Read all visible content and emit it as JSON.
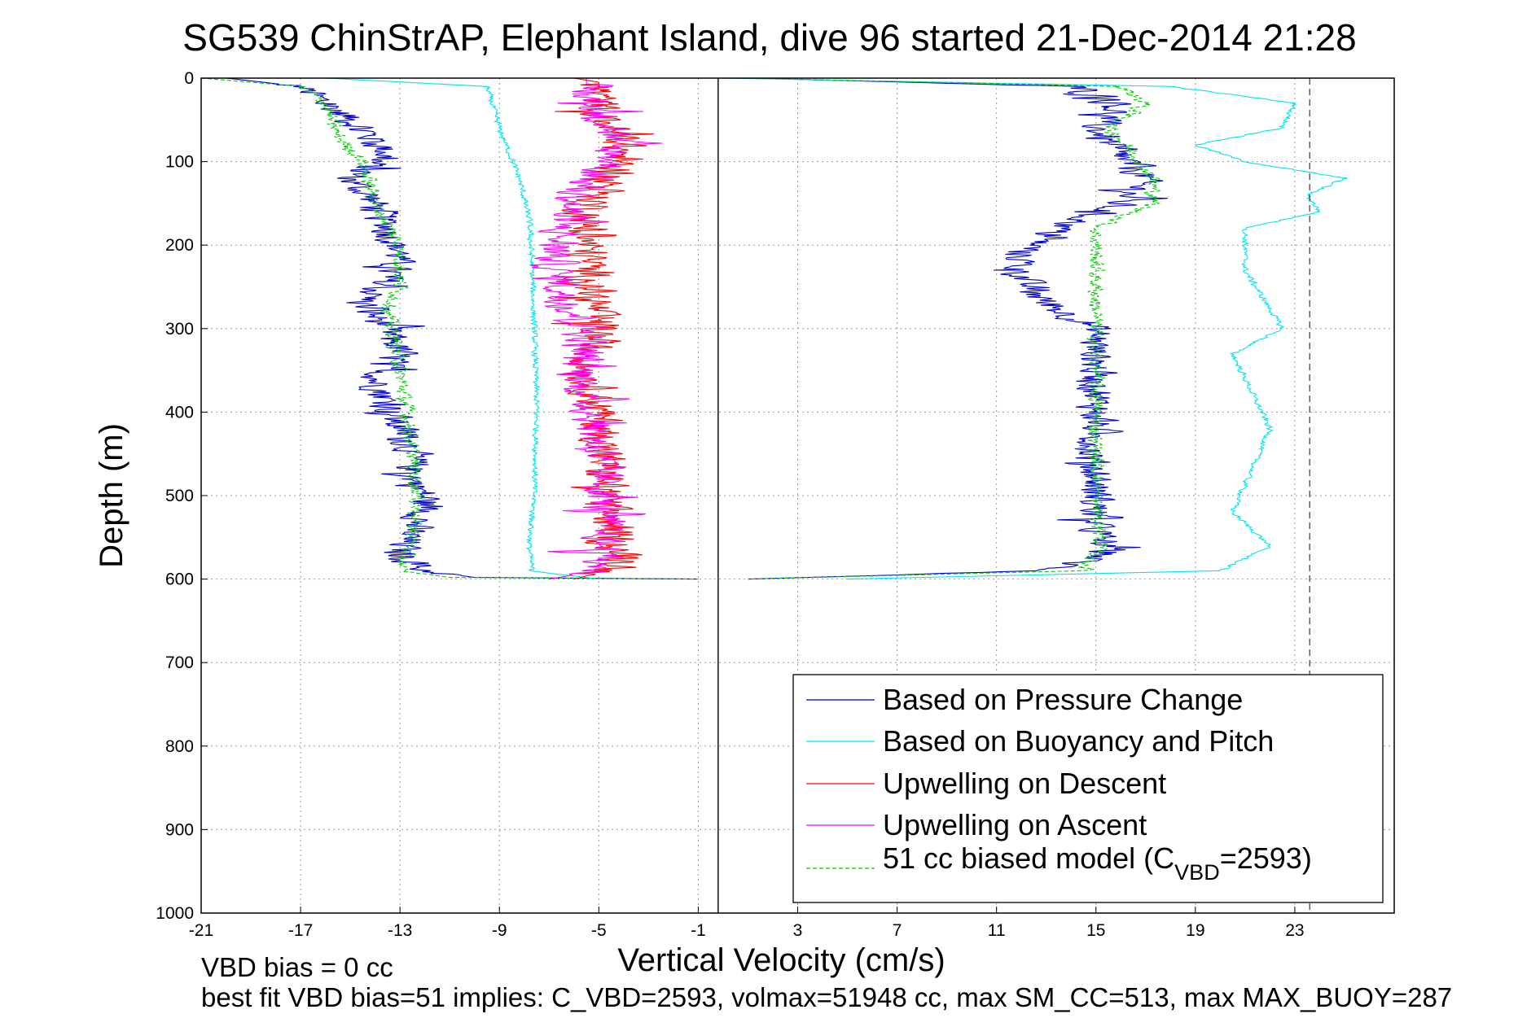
{
  "chart_data": {
    "type": "line",
    "title": "SG539 ChinStrAP, Elephant Island, dive 96 started 21-Dec-2014 21:28",
    "xlabel": "Vertical Velocity (cm/s)",
    "ylabel": "Depth (m)",
    "xlim": [
      -21,
      27
    ],
    "ylim": [
      1000,
      0
    ],
    "x_ticks": [
      "-21",
      "-17",
      "-13",
      "-9",
      "-5",
      "-1",
      "3",
      "7",
      "11",
      "15",
      "19",
      "23"
    ],
    "y_ticks": [
      "0",
      "100",
      "200",
      "300",
      "400",
      "500",
      "600",
      "700",
      "800",
      "900",
      "1000"
    ],
    "grid": true,
    "legend_position": "lower-right",
    "series": [
      {
        "name": "Based on Pressure Change",
        "color": "#0000cc",
        "style": "solid",
        "noise": 0.9,
        "segments": [
          {
            "depth": [
              0,
              10,
              30,
              60,
              90,
              120,
              150,
              180,
              210,
              240,
              270,
              300,
              330,
              360,
              390,
              420,
              450,
              480,
              510,
              540,
              570,
              590,
              598,
              600
            ],
            "x": [
              -20,
              -17,
              -16,
              -14.5,
              -13.5,
              -15,
              -14,
              -13.5,
              -13,
              -13.5,
              -14.5,
              -13.5,
              -13,
              -14,
              -13.5,
              -13,
              -12.5,
              -12.5,
              -11.8,
              -12.5,
              -13,
              -12,
              -10,
              -1
            ]
          },
          {
            "depth": [
              0,
              10,
              30,
              60,
              90,
              120,
              150,
              180,
              210,
              240,
              270,
              300,
              330,
              360,
              390,
              420,
              450,
              480,
              510,
              540,
              570,
              590,
              600
            ],
            "x": [
              1,
              14,
              16,
              15,
              15.8,
              17,
              16,
              13.5,
              12,
              12,
              13,
              15,
              15,
              15,
              15,
              15,
              14.8,
              15,
              15,
              15,
              15.5,
              13,
              1
            ]
          }
        ]
      },
      {
        "name": "Based on Buoyancy and Pitch",
        "color": "#00e5ee",
        "style": "solid",
        "noise": 0.15,
        "segments": [
          {
            "depth": [
              0,
              10,
              60,
              120,
              170,
              220,
              300,
              400,
              500,
              560,
              590,
              600
            ],
            "x": [
              -16,
              -9.5,
              -9,
              -8.2,
              -7.8,
              -7.7,
              -7.6,
              -7.5,
              -7.6,
              -7.8,
              -7.7,
              -5
            ]
          },
          {
            "depth": [
              0,
              10,
              30,
              60,
              80,
              100,
              120,
              140,
              160,
              180,
              230,
              300,
              330,
              420,
              520,
              560,
              590,
              600
            ],
            "x": [
              0,
              18,
              23,
              22.5,
              19,
              21,
              25,
              23.5,
              24,
              21,
              21,
              22.5,
              20.5,
              22,
              20.5,
              22,
              20,
              5
            ]
          }
        ]
      },
      {
        "name": "Upwelling on Descent",
        "color": "#ff0000",
        "style": "solid",
        "noise": 1.1,
        "segments": [
          {
            "depth": [
              0,
              5,
              40,
              80,
              120,
              160,
              200,
              250,
              300,
              350,
              400,
              450,
              500,
              550,
              585,
              600
            ],
            "x": [
              -6,
              -5,
              -5,
              -4,
              -4.5,
              -5.5,
              -5.5,
              -5.3,
              -5,
              -5.5,
              -5,
              -4.8,
              -4.7,
              -4.5,
              -4,
              -6
            ]
          }
        ]
      },
      {
        "name": "Upwelling on Ascent",
        "color": "#ff00ff",
        "style": "solid",
        "noise": 1.1,
        "segments": [
          {
            "depth": [
              0,
              20,
              60,
              100,
              140,
              180,
              220,
              260,
              300,
              350,
              400,
              450,
              500,
              550,
              590,
              600
            ],
            "x": [
              -5.5,
              -5.5,
              -4.5,
              -4.5,
              -6,
              -6.5,
              -6.8,
              -6.5,
              -5.5,
              -5.8,
              -5.3,
              -5,
              -4.8,
              -4.8,
              -5,
              -7
            ]
          }
        ]
      },
      {
        "name": "51 cc biased model (C_VBD=2593)",
        "label_main": "51 cc biased model (C",
        "label_sub": "VBD",
        "label_end": "=2593)",
        "color": "#00cc00",
        "style": "dashed",
        "noise": 0.4,
        "segments": [
          {
            "depth": [
              0,
              10,
              30,
              70,
              100,
              150,
              200,
              250,
              280,
              300,
              350,
              400,
              450,
              500,
              550,
              590,
              598,
              600
            ],
            "x": [
              -21,
              -17,
              -16,
              -15.5,
              -14.5,
              -14,
              -13,
              -13,
              -13.5,
              -13.3,
              -13,
              -12.7,
              -12.5,
              -12.3,
              -12.5,
              -13,
              -11,
              -1
            ]
          },
          {
            "depth": [
              0,
              10,
              30,
              60,
              90,
              120,
              150,
              180,
              210,
              250,
              300,
              400,
              500,
              560,
              590,
              600
            ],
            "x": [
              1,
              16,
              17,
              15.5,
              16.5,
              17.3,
              17.3,
              15,
              15,
              15,
              15,
              15,
              15,
              15.2,
              14.5,
              1
            ]
          }
        ]
      }
    ],
    "vertical_lines": [
      {
        "x": -0.2,
        "style": "solid",
        "color": "#000000"
      },
      {
        "x": 23.6,
        "style": "dashed",
        "color": "#555555"
      }
    ]
  },
  "footer": {
    "line1": "VBD bias = 0 cc",
    "line2": "best fit VBD bias=51 implies: C_VBD=2593, volmax=51948 cc, max SM_CC=513, max MAX_BUOY=287"
  }
}
